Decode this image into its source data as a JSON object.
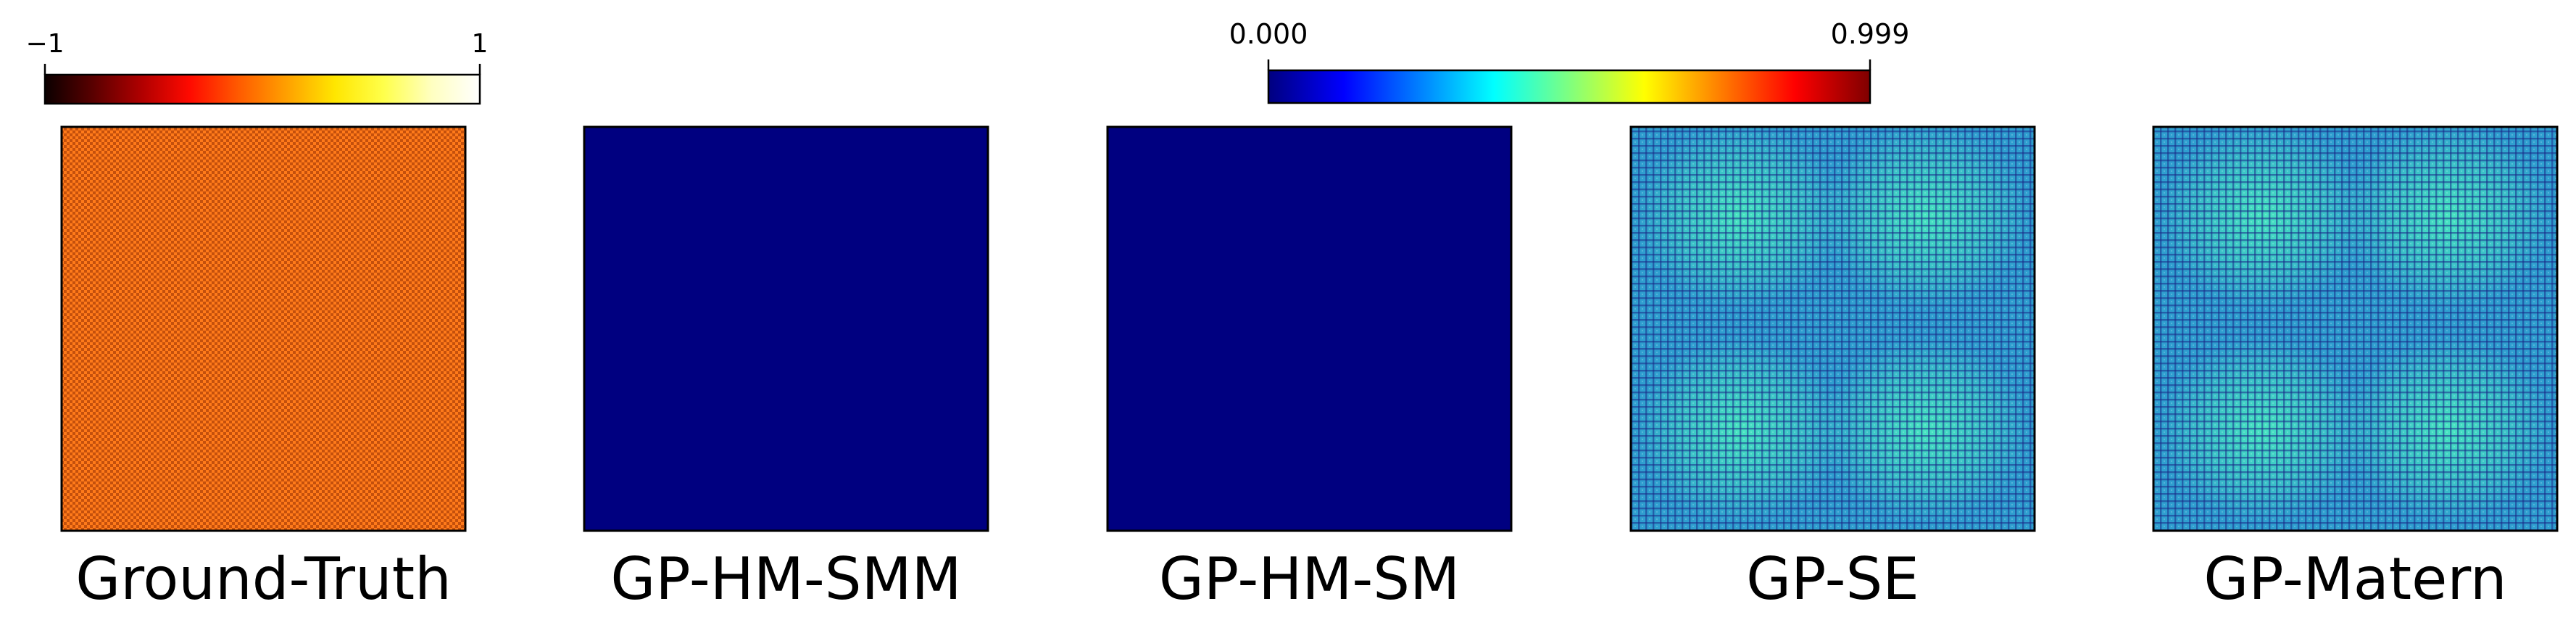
{
  "colorbars": [
    {
      "name": "hot",
      "min_label": "−1",
      "max_label": "1",
      "min": -1,
      "max": 1,
      "colors": [
        "#0b0000",
        "#5a0000",
        "#b00000",
        "#ff0a00",
        "#ff5a00",
        "#ffa000",
        "#ffe600",
        "#ffff4a",
        "#ffffc0",
        "#ffffff"
      ]
    },
    {
      "name": "jet",
      "min_label": "0.000",
      "max_label": "0.999",
      "min": 0.0,
      "max": 0.999,
      "colors": [
        "#00007f",
        "#0000ff",
        "#007fff",
        "#00ffff",
        "#7fff7f",
        "#ffff00",
        "#ff7f00",
        "#ff0000",
        "#7f0000"
      ]
    }
  ],
  "chart_data": {
    "type": "heatmap",
    "panels": [
      {
        "title": "Ground-Truth",
        "colormap": "hot",
        "pattern": "fine-checker",
        "base_color": "#ff7a1a",
        "alt_color": "#c4500c"
      },
      {
        "title": "GP-HM-SMM",
        "colormap": "jet",
        "pattern": "uniform",
        "base_color": "#000080"
      },
      {
        "title": "GP-HM-SM",
        "colormap": "jet",
        "pattern": "uniform",
        "base_color": "#000080"
      },
      {
        "title": "GP-SE",
        "colormap": "jet",
        "pattern": "grid-texture",
        "base_color": "#2f9fd0",
        "glow_color": "#48e8c0",
        "line_color": "#1a2a88"
      },
      {
        "title": "GP-Matern",
        "colormap": "jet",
        "pattern": "grid-texture",
        "base_color": "#2f9fd0",
        "glow_color": "#48e8c0",
        "line_color": "#1a2a88"
      }
    ]
  }
}
